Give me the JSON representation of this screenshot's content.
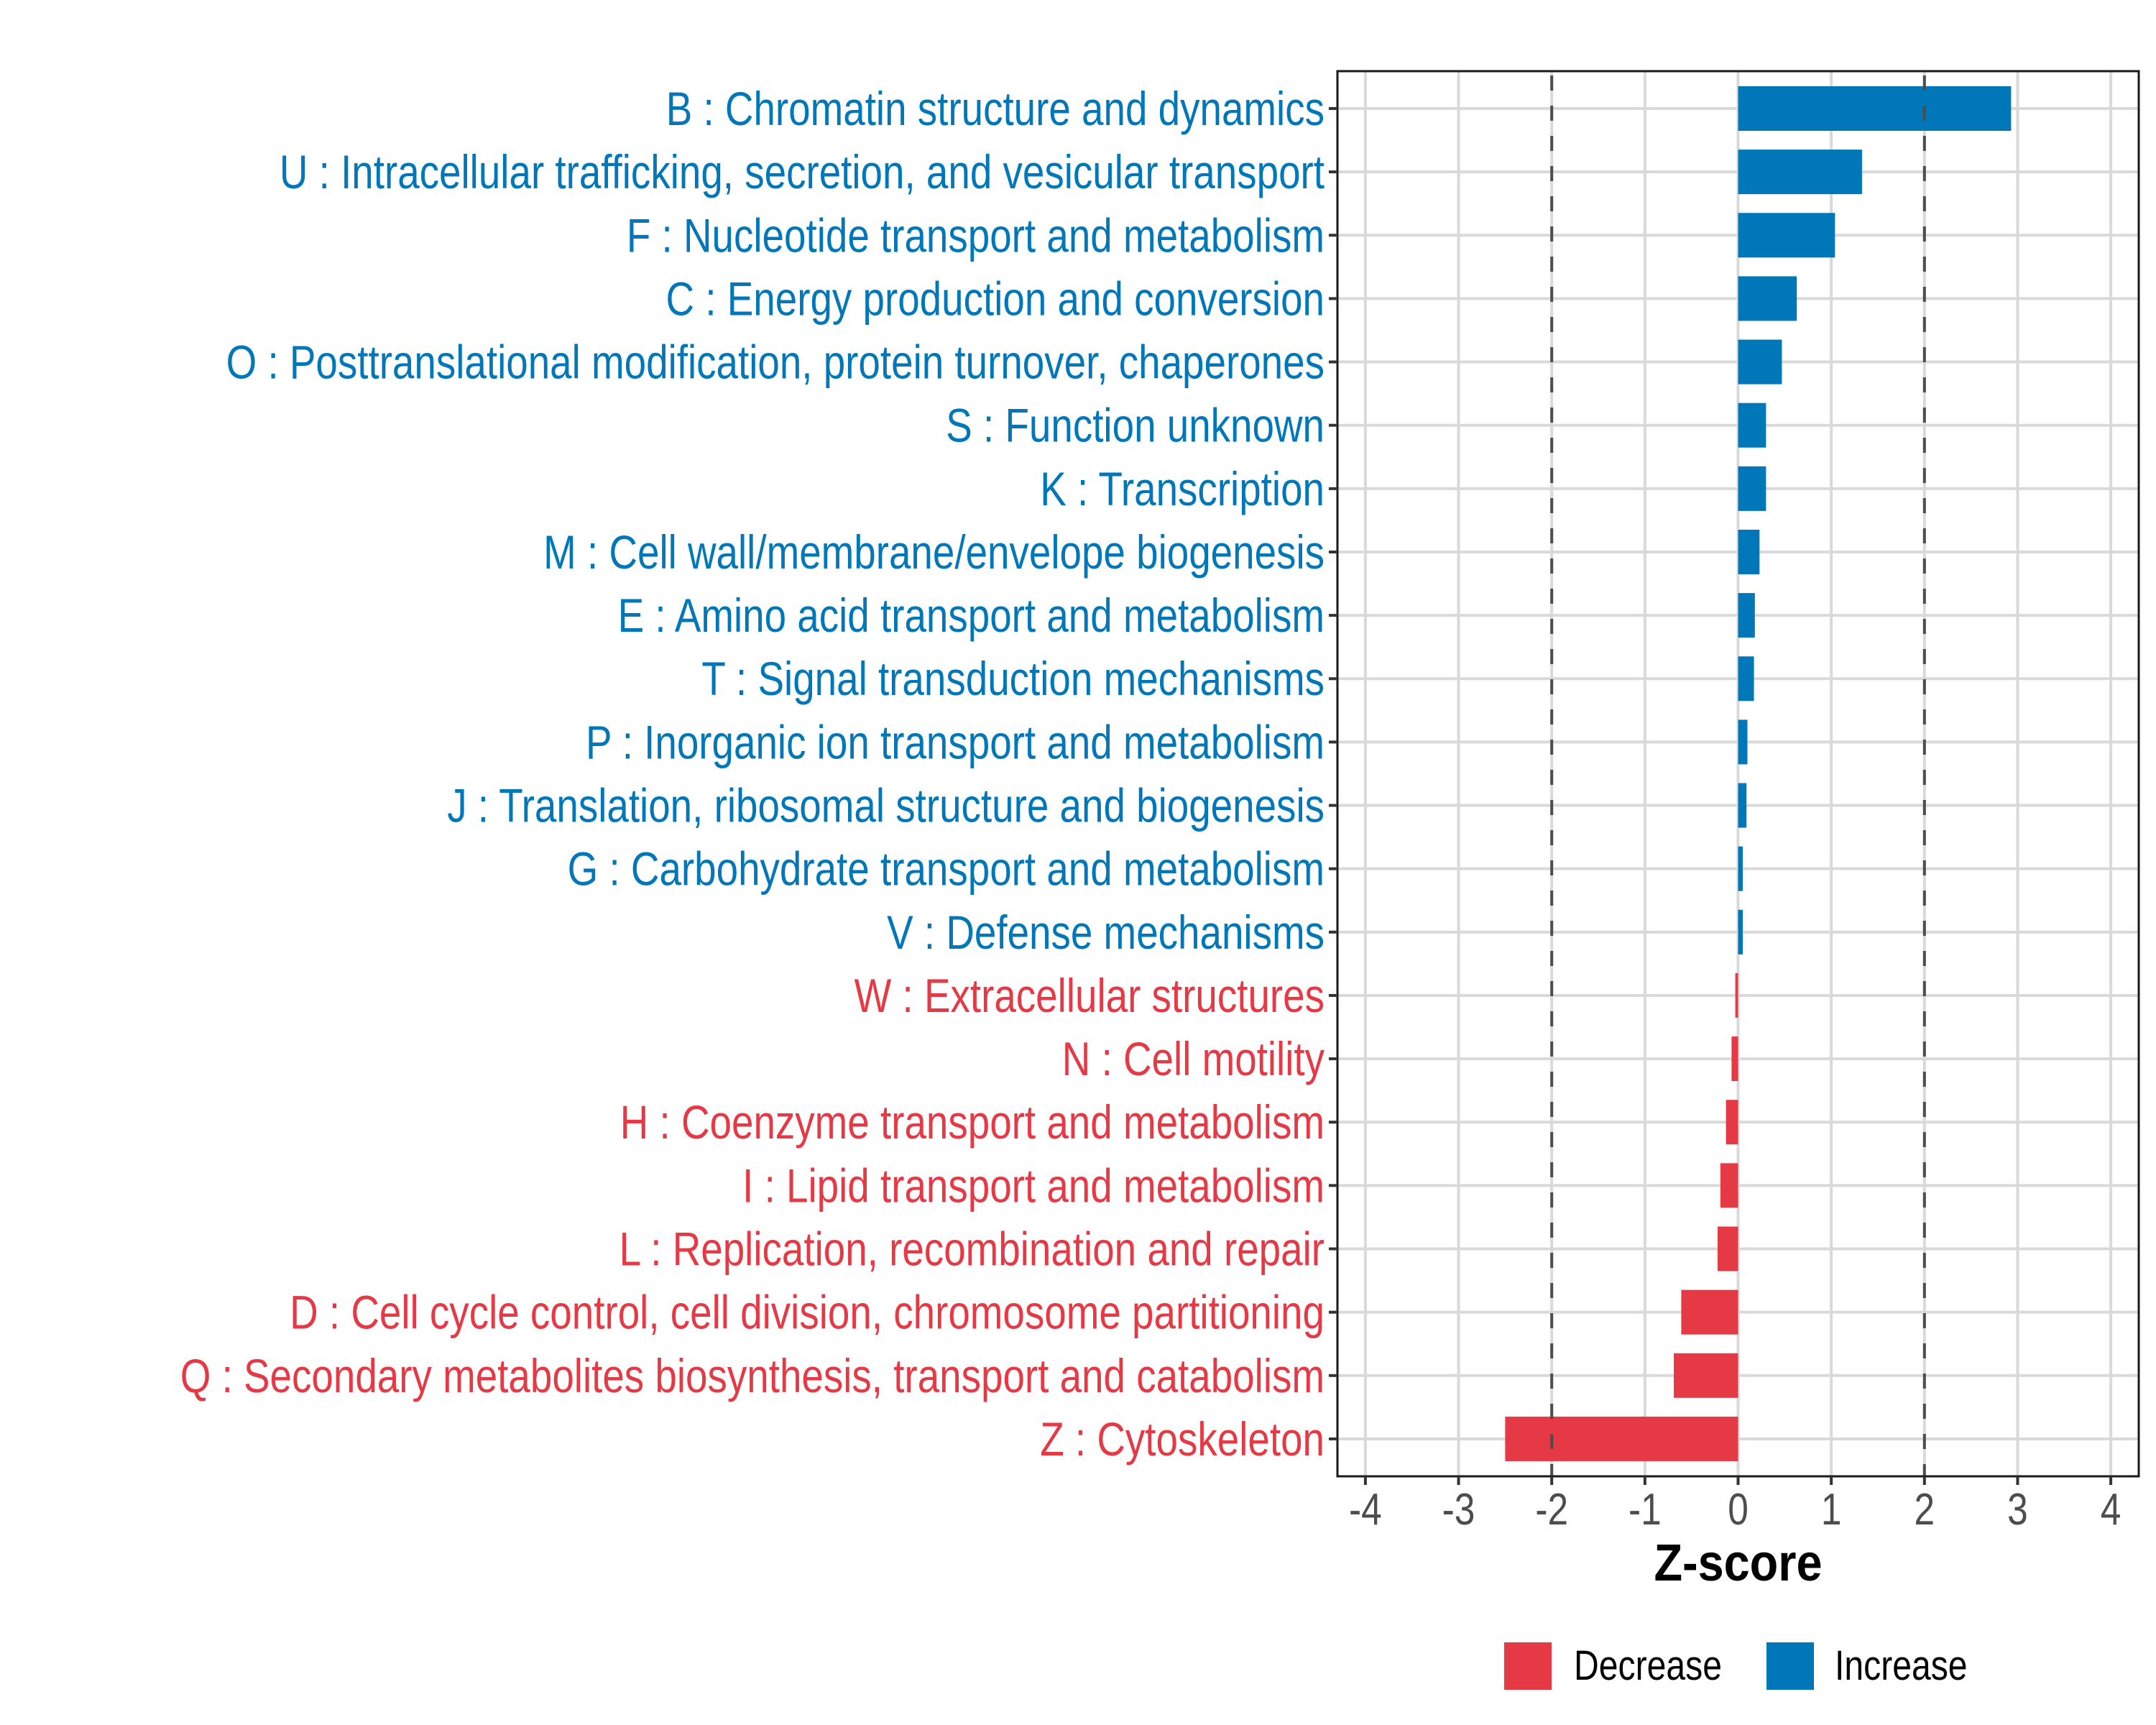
{
  "chart_data": {
    "type": "bar",
    "orientation": "horizontal",
    "title": "",
    "xlabel": "Z-score",
    "ylabel": "",
    "xlim": [
      -4.3,
      4.3
    ],
    "xticks": [
      -4,
      -3,
      -2,
      -1,
      0,
      1,
      2,
      3,
      4
    ],
    "grid": true,
    "reference_lines": [
      -2,
      2
    ],
    "legend_position": "bottom",
    "colors": {
      "Decrease": "#E63946",
      "Increase": "#0077B8"
    },
    "legend": [
      {
        "label": "Decrease",
        "color": "#E63946"
      },
      {
        "label": "Increase",
        "color": "#0077B8"
      }
    ],
    "categories": [
      "B : Chromatin structure and dynamics",
      "U : Intracellular trafficking, secretion, and vesicular transport",
      "F : Nucleotide transport and metabolism",
      "C : Energy production and conversion",
      "O : Posttranslational modification, protein turnover, chaperones",
      "S : Function unknown",
      "K : Transcription",
      "M : Cell wall/membrane/envelope biogenesis",
      "E : Amino acid transport and metabolism",
      "T : Signal transduction mechanisms",
      "P : Inorganic ion transport and metabolism",
      "J : Translation, ribosomal structure and biogenesis",
      "G : Carbohydrate transport and metabolism",
      "V : Defense mechanisms",
      "W : Extracellular structures",
      "N : Cell motility",
      "H : Coenzyme transport and metabolism",
      "I : Lipid transport and metabolism",
      "L : Replication, recombination and repair",
      "D : Cell cycle control, cell division, chromosome partitioning",
      "Q : Secondary metabolites biosynthesis, transport and catabolism",
      "Z : Cytoskeleton"
    ],
    "values": [
      2.93,
      1.33,
      1.04,
      0.63,
      0.47,
      0.3,
      0.3,
      0.23,
      0.18,
      0.17,
      0.1,
      0.09,
      0.05,
      0.05,
      -0.03,
      -0.07,
      -0.13,
      -0.19,
      -0.22,
      -0.61,
      -0.69,
      -2.5
    ],
    "groups": [
      "Increase",
      "Increase",
      "Increase",
      "Increase",
      "Increase",
      "Increase",
      "Increase",
      "Increase",
      "Increase",
      "Increase",
      "Increase",
      "Increase",
      "Increase",
      "Increase",
      "Decrease",
      "Decrease",
      "Decrease",
      "Decrease",
      "Decrease",
      "Decrease",
      "Decrease",
      "Decrease"
    ]
  }
}
